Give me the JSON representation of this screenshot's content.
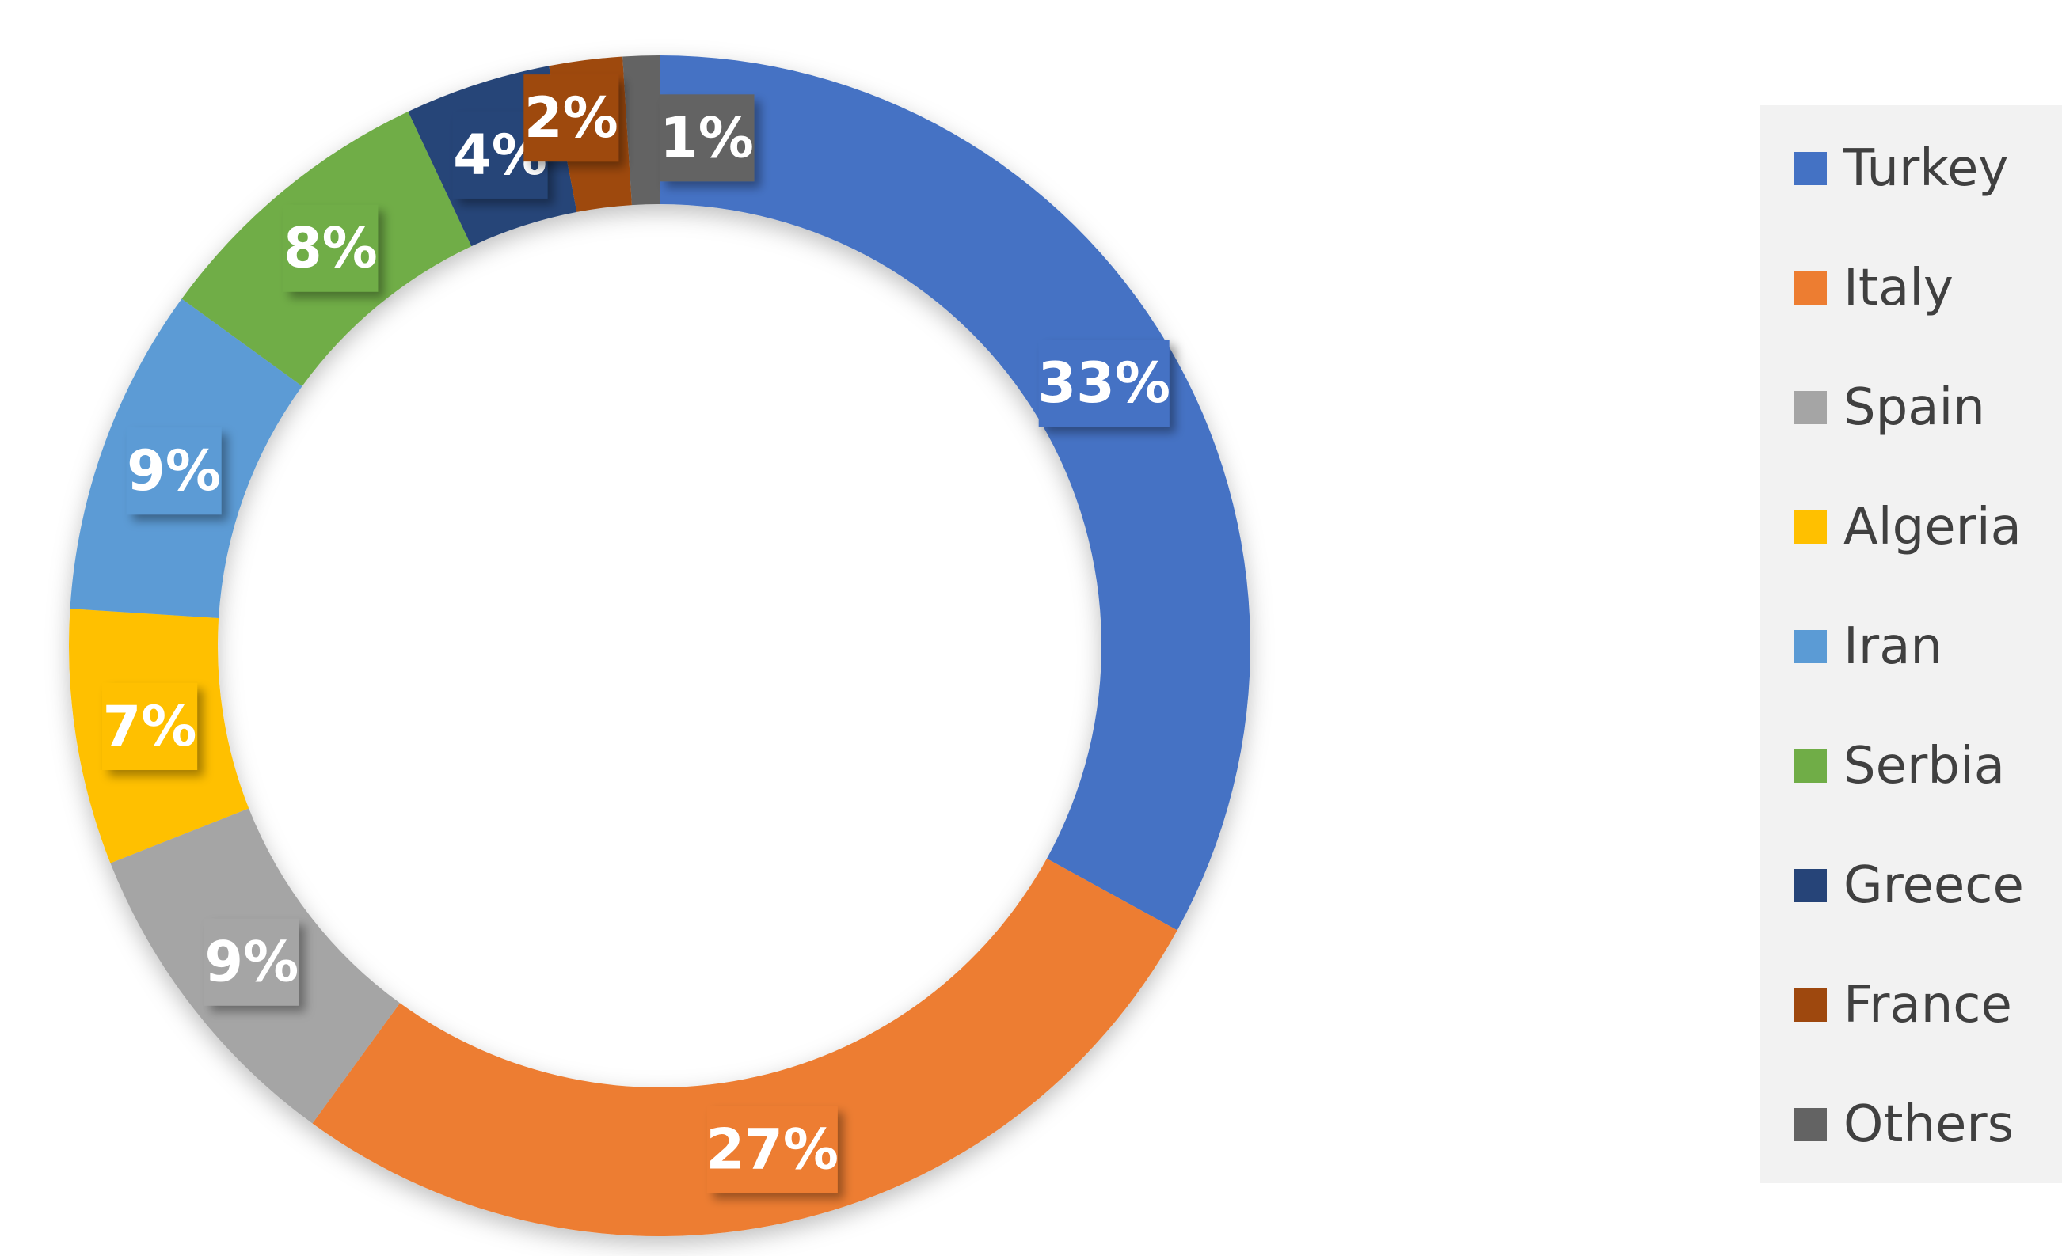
{
  "chart_data": {
    "type": "donut",
    "categories": [
      "Turkey",
      "Italy",
      "Spain",
      "Algeria",
      "Iran",
      "Serbia",
      "Greece",
      "France",
      "Others"
    ],
    "values": [
      33,
      27,
      9,
      7,
      9,
      8,
      4,
      2,
      1
    ],
    "value_labels": [
      "33%",
      "27%",
      "9%",
      "7%",
      "9%",
      "8%",
      "4%",
      "2%",
      "1%"
    ],
    "colors": [
      "#4472c4",
      "#ed7d31",
      "#a5a5a5",
      "#ffc000",
      "#5b9bd5",
      "#70ad47",
      "#264478",
      "#9e480e",
      "#636363"
    ],
    "legend": "right"
  }
}
